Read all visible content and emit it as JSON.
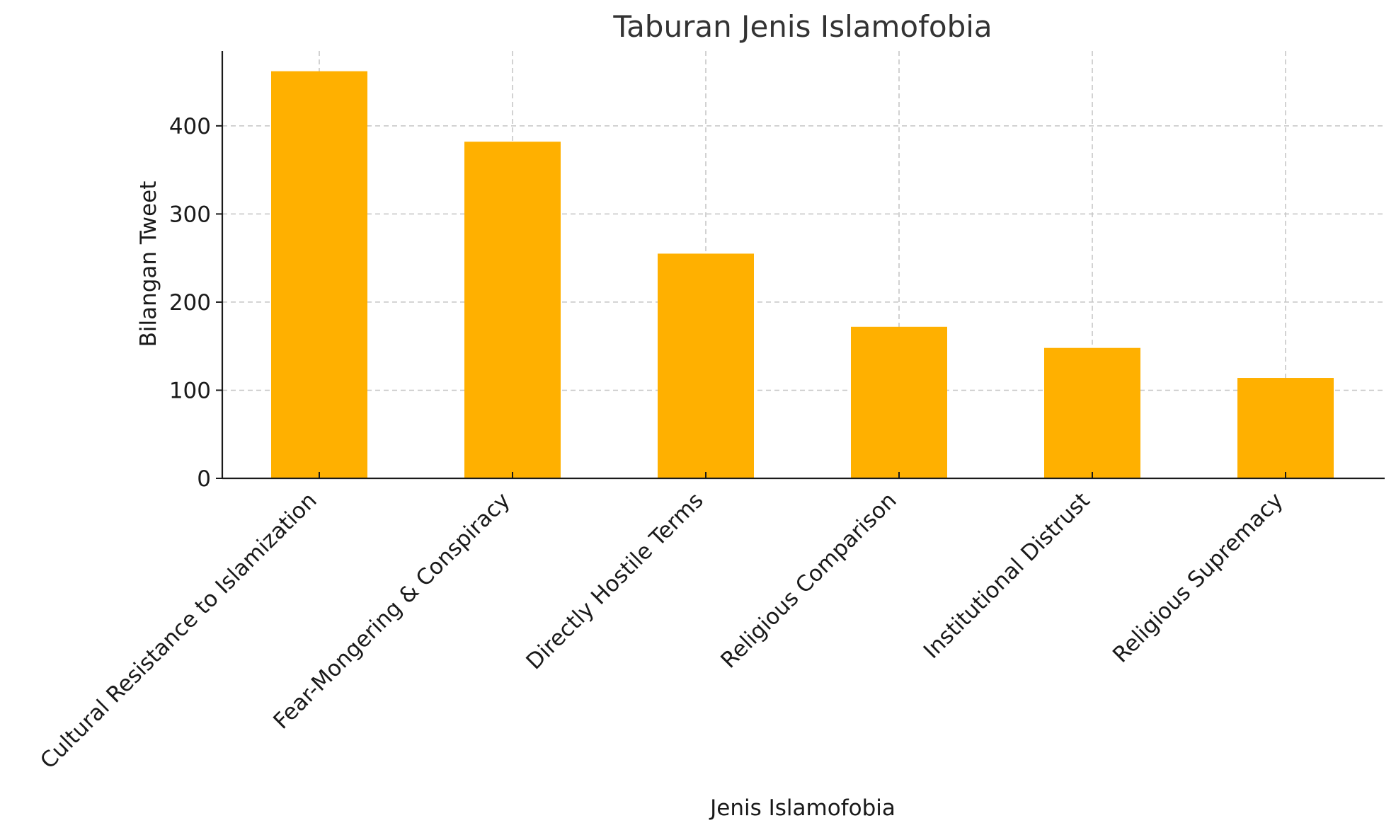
{
  "chart_data": {
    "type": "bar",
    "title": "Taburan Jenis Islamofobia",
    "xlabel": "Jenis Islamofobia",
    "ylabel": "Bilangan Tweet",
    "categories": [
      "Cultural Resistance to Islamization",
      "Fear-Mongering & Conspiracy",
      "Directly Hostile Terms",
      "Religious Comparison",
      "Institutional Distrust",
      "Religious Supremacy"
    ],
    "values": [
      462,
      382,
      255,
      172,
      148,
      114
    ],
    "ylim": [
      0,
      485
    ],
    "yticks": [
      "0",
      "100",
      "200",
      "300",
      "400"
    ],
    "grid": true,
    "colors": {
      "bar": "#FFB000",
      "grid": "#c4c4c4",
      "axis": "#1a1a1a",
      "title": "#333333"
    }
  }
}
